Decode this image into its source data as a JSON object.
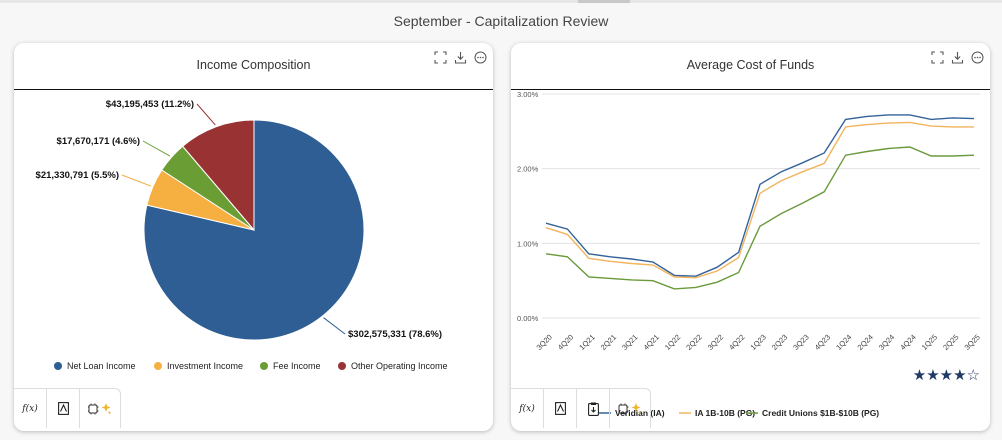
{
  "page": {
    "title": "September - Capitalization Review"
  },
  "colors": {
    "net_loan": "#2e5e93",
    "investment": "#f5b041",
    "fee": "#6a9e34",
    "other_operating": "#993333",
    "veridian": "#34629a",
    "ia_peer": "#f2b45c",
    "credit_unions": "#6a9a3b"
  },
  "cards": [
    {
      "title": "Income Composition",
      "tools": [
        "expand-icon",
        "download-icon",
        "more-options-icon"
      ],
      "bottom_bar": [
        "function-icon",
        "document-icon",
        "ai-sparkle-icon"
      ],
      "bottom_labels": {
        "function": "f(x)"
      }
    },
    {
      "title": "Average Cost of Funds",
      "tools": [
        "expand-icon",
        "download-icon",
        "more-options-icon"
      ],
      "bottom_bar": [
        "function-icon",
        "document-icon",
        "clipboard-icon",
        "ai-sparkle-icon"
      ],
      "bottom_labels": {
        "function": "f(x)"
      },
      "rating": "★★★★☆"
    }
  ],
  "chart_data": [
    {
      "type": "pie",
      "title": "Income Composition",
      "slices": [
        {
          "name": "Net Loan Income",
          "value": 302575331,
          "label": "$302,575,331 (78.6%)"
        },
        {
          "name": "Investment Income",
          "value": 21330791,
          "label": "$21,330,791 (5.5%)"
        },
        {
          "name": "Fee Income",
          "value": 17670171,
          "label": "$17,670,171 (4.6%)"
        },
        {
          "name": "Other Operating Income",
          "value": 43195453,
          "label": "$43,195,453 (11.2%)"
        }
      ],
      "legend_position": "bottom"
    },
    {
      "type": "line",
      "title": "Average Cost of Funds",
      "x": [
        "3Q20",
        "4Q20",
        "1Q21",
        "2Q21",
        "3Q21",
        "4Q21",
        "1Q22",
        "2Q22",
        "3Q22",
        "4Q22",
        "1Q23",
        "2Q23",
        "3Q23",
        "4Q23",
        "1Q24",
        "2Q24",
        "3Q24",
        "4Q24",
        "1Q25",
        "2Q25",
        "3Q25"
      ],
      "ylim": [
        0,
        3
      ],
      "yticks": [
        "0.00%",
        "1.00%",
        "2.00%",
        "3.00%"
      ],
      "grid": "horizontal",
      "legend_position": "bottom",
      "series": [
        {
          "name": "Veridian (IA)",
          "values": [
            1.27,
            1.19,
            0.86,
            0.82,
            0.79,
            0.75,
            0.57,
            0.56,
            0.68,
            0.88,
            1.79,
            1.96,
            2.08,
            2.21,
            2.66,
            2.7,
            2.72,
            2.72,
            2.66,
            2.68,
            2.67
          ]
        },
        {
          "name": "IA 1B-10B (PG)",
          "values": [
            1.21,
            1.12,
            0.8,
            0.76,
            0.73,
            0.71,
            0.55,
            0.54,
            0.63,
            0.81,
            1.67,
            1.84,
            1.96,
            2.07,
            2.56,
            2.59,
            2.61,
            2.62,
            2.57,
            2.56,
            2.56
          ]
        },
        {
          "name": "Credit Unions $1B-$10B (PG)",
          "values": [
            0.86,
            0.82,
            0.55,
            0.53,
            0.51,
            0.5,
            0.39,
            0.41,
            0.48,
            0.61,
            1.23,
            1.4,
            1.54,
            1.69,
            2.18,
            2.23,
            2.27,
            2.29,
            2.17,
            2.17,
            2.18
          ]
        }
      ]
    }
  ]
}
